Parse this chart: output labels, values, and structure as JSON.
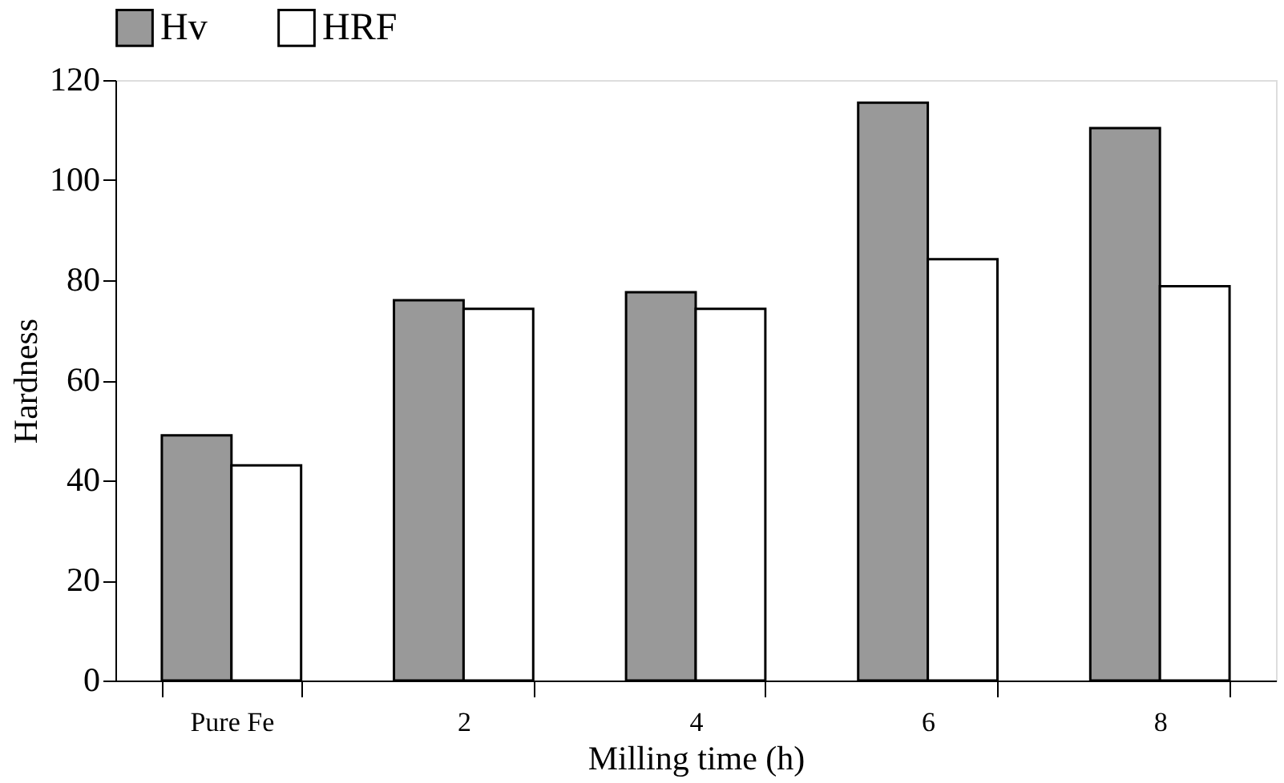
{
  "chart_data": {
    "type": "bar",
    "xlabel": "Milling time (h)",
    "ylabel": "Hardness",
    "categories": [
      "Pure Fe",
      "2",
      "4",
      "6",
      "8"
    ],
    "series": [
      {
        "name": "Hv",
        "color": "#999999",
        "values": [
          49,
          76,
          77.6,
          115.5,
          110.4
        ]
      },
      {
        "name": "HRF",
        "color": "#ffffff",
        "values": [
          43,
          74.3,
          74.3,
          84.2,
          78.8
        ]
      }
    ],
    "ylim": [
      0,
      120
    ],
    "yticks": [
      0,
      20,
      40,
      60,
      80,
      100,
      120
    ],
    "grid": false,
    "legend": "top"
  }
}
